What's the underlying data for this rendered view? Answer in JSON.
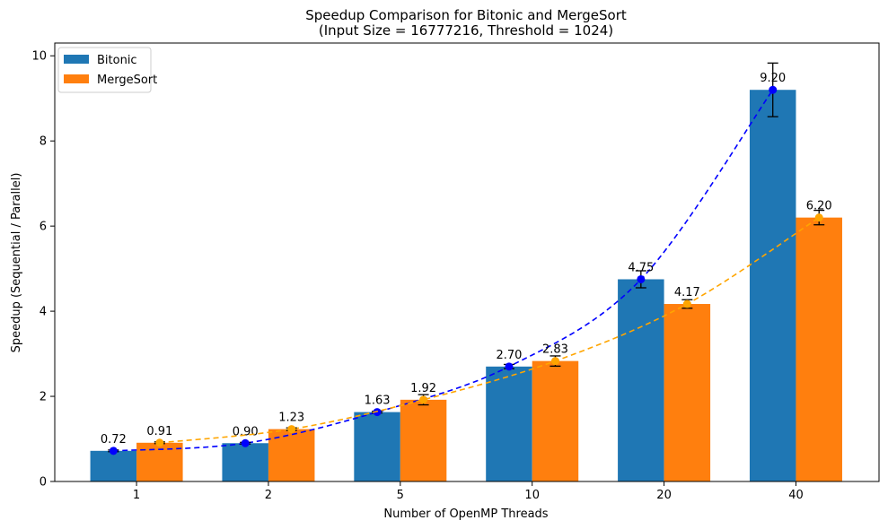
{
  "chart_data": {
    "type": "bar",
    "title": "Speedup Comparison for Bitonic and MergeSort",
    "subtitle": "(Input Size = 16777216, Threshold = 1024)",
    "xlabel": "Number of OpenMP Threads",
    "ylabel": "Speedup (Sequential / Parallel)",
    "categories": [
      "1",
      "2",
      "5",
      "10",
      "20",
      "40"
    ],
    "ylim": [
      0,
      10.3
    ],
    "yticks": [
      0,
      2,
      4,
      6,
      8,
      10
    ],
    "grid": false,
    "legend_position": "top-left",
    "series": [
      {
        "name": "Bitonic",
        "bar_color": "#1f77b4",
        "line_color": "#0000ff",
        "values": [
          0.72,
          0.9,
          1.63,
          2.7,
          4.75,
          9.2
        ],
        "labels": [
          "0.72",
          "0.90",
          "1.63",
          "2.70",
          "4.75",
          "9.20"
        ],
        "error": [
          0.02,
          0.02,
          0.02,
          0.05,
          0.2,
          0.63
        ]
      },
      {
        "name": "MergeSort",
        "bar_color": "#ff7f0e",
        "line_color": "#ffa500",
        "values": [
          0.91,
          1.23,
          1.92,
          2.83,
          4.17,
          6.2
        ],
        "labels": [
          "0.91",
          "1.23",
          "1.92",
          "2.83",
          "4.17",
          "6.20"
        ],
        "error": [
          0.02,
          0.03,
          0.12,
          0.12,
          0.1,
          0.17
        ]
      }
    ]
  }
}
